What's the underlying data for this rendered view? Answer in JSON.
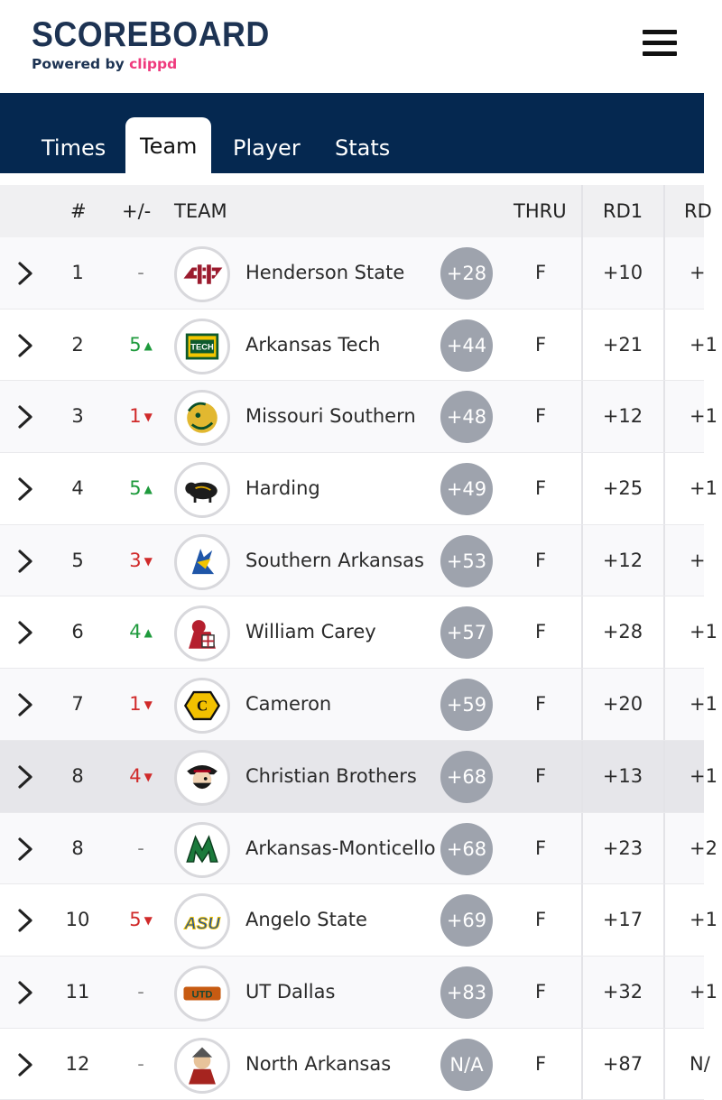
{
  "brand": {
    "title": "SCOREBOARD",
    "powered_by": "Powered by ",
    "partner": "clippd",
    "accent": "#ef3a7d",
    "navy": "#052850"
  },
  "tabs": [
    {
      "label": "Times",
      "active": false
    },
    {
      "label": "Team",
      "active": true
    },
    {
      "label": "Player",
      "active": false
    },
    {
      "label": "Stats",
      "active": false
    }
  ],
  "table": {
    "headers": {
      "rank": "#",
      "move": "+/-",
      "team": "TEAM",
      "thru": "THRU",
      "rd1": "RD1",
      "rd2": "RD"
    },
    "rows": [
      {
        "rank": "1",
        "move": "-",
        "dir": "none",
        "team": "Henderson State",
        "score": "+28",
        "thru": "F",
        "rd1": "+10",
        "rd2": "+",
        "logo": "henderson-state-logo"
      },
      {
        "rank": "2",
        "move": "5",
        "dir": "up",
        "team": "Arkansas Tech",
        "score": "+44",
        "thru": "F",
        "rd1": "+21",
        "rd2": "+1",
        "logo": "arkansas-tech-logo"
      },
      {
        "rank": "3",
        "move": "1",
        "dir": "down",
        "team": "Missouri Southern",
        "score": "+48",
        "thru": "F",
        "rd1": "+12",
        "rd2": "+1",
        "logo": "missouri-southern-logo"
      },
      {
        "rank": "4",
        "move": "5",
        "dir": "up",
        "team": "Harding",
        "score": "+49",
        "thru": "F",
        "rd1": "+25",
        "rd2": "+1",
        "logo": "harding-logo"
      },
      {
        "rank": "5",
        "move": "3",
        "dir": "down",
        "team": "Southern Arkansas",
        "score": "+53",
        "thru": "F",
        "rd1": "+12",
        "rd2": "+",
        "logo": "southern-arkansas-logo"
      },
      {
        "rank": "6",
        "move": "4",
        "dir": "up",
        "team": "William Carey",
        "score": "+57",
        "thru": "F",
        "rd1": "+28",
        "rd2": "+1",
        "logo": "william-carey-logo"
      },
      {
        "rank": "7",
        "move": "1",
        "dir": "down",
        "team": "Cameron",
        "score": "+59",
        "thru": "F",
        "rd1": "+20",
        "rd2": "+1",
        "logo": "cameron-logo"
      },
      {
        "rank": "8",
        "move": "4",
        "dir": "down",
        "team": "Christian Brothers",
        "score": "+68",
        "thru": "F",
        "rd1": "+13",
        "rd2": "+1",
        "logo": "christian-brothers-logo",
        "highlight": true
      },
      {
        "rank": "8",
        "move": "-",
        "dir": "none",
        "team": "Arkansas-Monticello",
        "score": "+68",
        "thru": "F",
        "rd1": "+23",
        "rd2": "+2",
        "logo": "arkansas-monticello-logo"
      },
      {
        "rank": "10",
        "move": "5",
        "dir": "down",
        "team": "Angelo State",
        "score": "+69",
        "thru": "F",
        "rd1": "+17",
        "rd2": "+1",
        "logo": "angelo-state-logo"
      },
      {
        "rank": "11",
        "move": "-",
        "dir": "none",
        "team": "UT Dallas",
        "score": "+83",
        "thru": "F",
        "rd1": "+32",
        "rd2": "+1",
        "logo": "ut-dallas-logo"
      },
      {
        "rank": "12",
        "move": "-",
        "dir": "none",
        "team": "North Arkansas",
        "score": "N/A",
        "thru": "F",
        "rd1": "+87",
        "rd2": "N/",
        "logo": "north-arkansas-logo"
      }
    ]
  }
}
